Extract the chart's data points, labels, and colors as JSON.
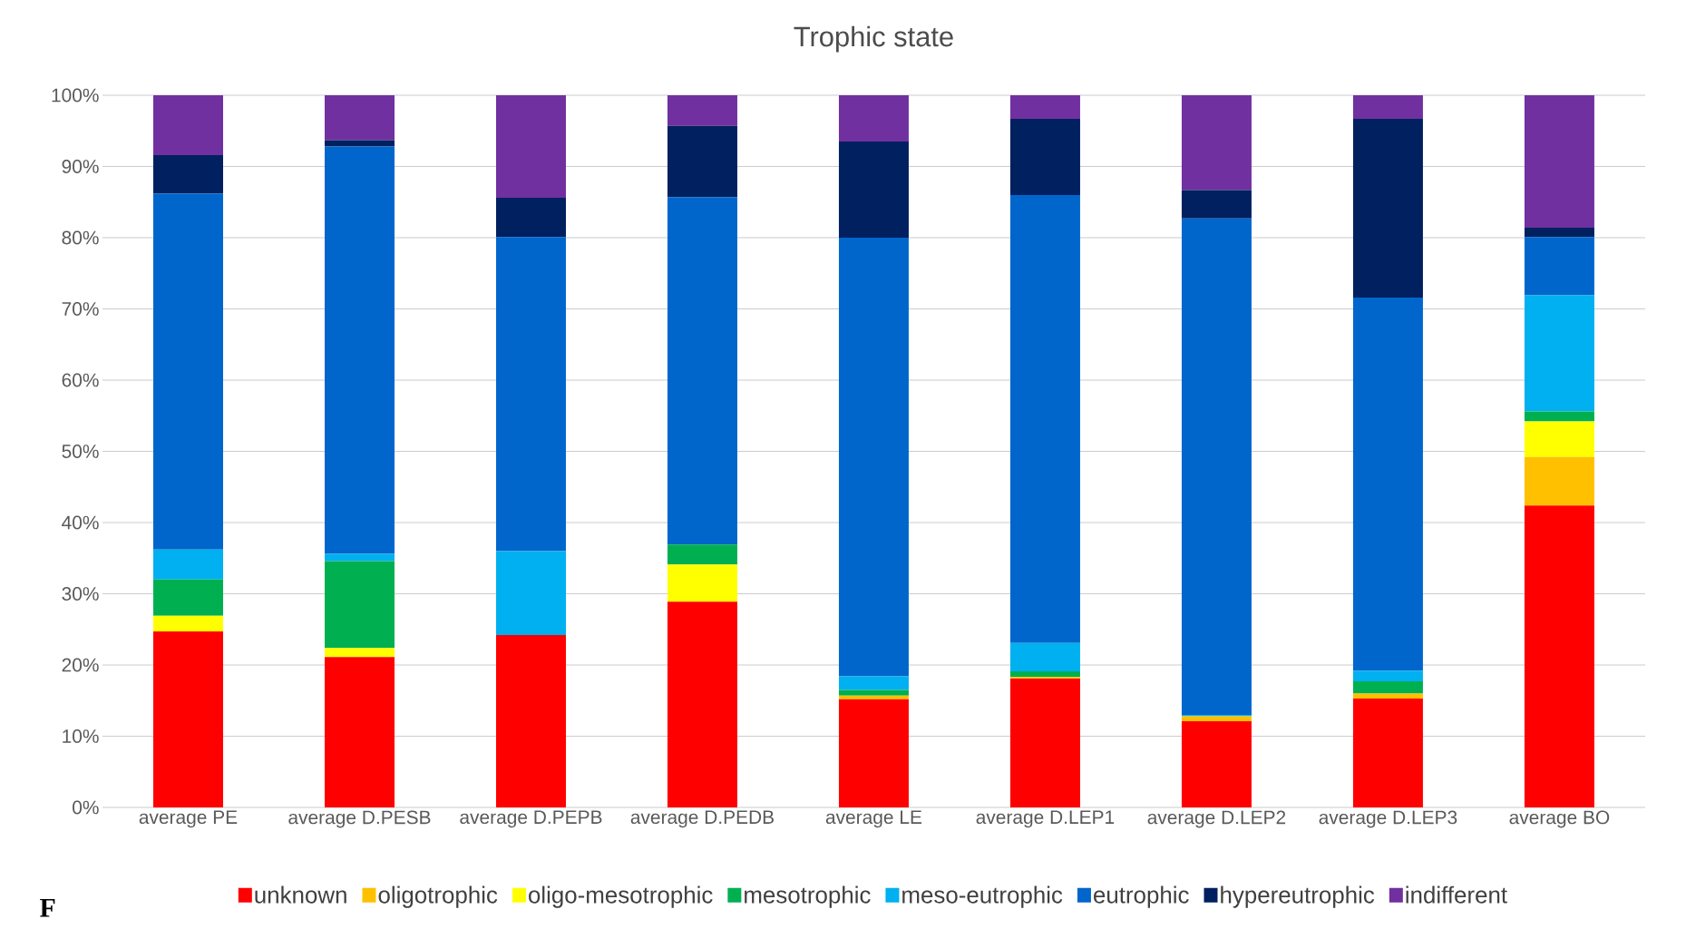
{
  "chart_data": {
    "type": "bar",
    "title": "Trophic state",
    "stacked": true,
    "categories": [
      "average PE",
      "average D.PESB",
      "average D.PEPB",
      "average D.PEDB",
      "average LE",
      "average D.LEP1",
      "average D.LEP2",
      "average D.LEP3",
      "average BO"
    ],
    "series": [
      {
        "name": "unknown",
        "color": "#ff0000",
        "values": [
          24.7,
          21.1,
          24.2,
          28.9,
          15.2,
          18.1,
          12.1,
          15.3,
          42.4
        ]
      },
      {
        "name": "oligotrophic",
        "color": "#ffc000",
        "values": [
          0,
          0,
          0,
          0,
          0.5,
          0.2,
          0.7,
          0.7,
          6.8
        ]
      },
      {
        "name": "oligo-mesotrophic",
        "color": "#ffff00",
        "values": [
          2.2,
          1.3,
          0,
          5.2,
          0,
          0,
          0,
          0,
          5.0
        ]
      },
      {
        "name": "mesotrophic",
        "color": "#00b050",
        "values": [
          5.1,
          12.2,
          0,
          2.8,
          0.8,
          0.8,
          0,
          1.7,
          1.4
        ]
      },
      {
        "name": "meso-eutrophic",
        "color": "#00b0f0",
        "values": [
          4.2,
          1.0,
          11.8,
          0,
          1.9,
          4.0,
          0.2,
          1.5,
          16.3
        ]
      },
      {
        "name": "eutrophic",
        "color": "#0066cc",
        "values": [
          50.0,
          57.2,
          44.1,
          48.8,
          61.6,
          62.9,
          69.7,
          52.4,
          8.2
        ]
      },
      {
        "name": "hypereutrophic",
        "color": "#002060",
        "values": [
          5.4,
          0.9,
          5.5,
          10.0,
          13.5,
          10.7,
          4.0,
          25.1,
          1.3
        ]
      },
      {
        "name": "indifferent",
        "color": "#7030a0",
        "values": [
          8.4,
          6.3,
          14.4,
          4.3,
          6.5,
          3.3,
          13.3,
          3.3,
          18.6
        ]
      }
    ],
    "ylim": [
      0,
      100
    ],
    "yticks": [
      {
        "value": 0,
        "label": "0%"
      },
      {
        "value": 10,
        "label": "10%"
      },
      {
        "value": 20,
        "label": "20%"
      },
      {
        "value": 30,
        "label": "30%"
      },
      {
        "value": 40,
        "label": "40%"
      },
      {
        "value": 50,
        "label": "50%"
      },
      {
        "value": 60,
        "label": "60%"
      },
      {
        "value": 70,
        "label": "70%"
      },
      {
        "value": 80,
        "label": "80%"
      },
      {
        "value": 90,
        "label": "90%"
      },
      {
        "value": 100,
        "label": "100%"
      }
    ],
    "grid": "y",
    "legend": "bottom",
    "annotations": [
      "F"
    ]
  }
}
